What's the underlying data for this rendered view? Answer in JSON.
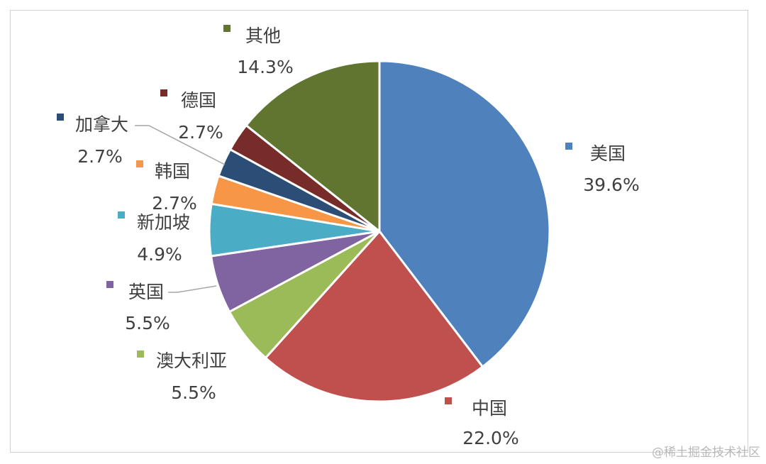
{
  "chart_data": {
    "type": "pie",
    "start_angle_deg": 0,
    "direction": "clockwise",
    "slices": [
      {
        "label": "美国",
        "value": 39.6,
        "display": "39.6%",
        "color": "#4f81bd"
      },
      {
        "label": "中国",
        "value": 22.0,
        "display": "22.0%",
        "color": "#c0504d"
      },
      {
        "label": "澳大利亚",
        "value": 5.5,
        "display": "5.5%",
        "color": "#9bbb59"
      },
      {
        "label": "英国",
        "value": 5.5,
        "display": "5.5%",
        "color": "#8064a2"
      },
      {
        "label": "新加坡",
        "value": 4.9,
        "display": "4.9%",
        "color": "#4bacc6"
      },
      {
        "label": "韩国",
        "value": 2.7,
        "display": "2.7%",
        "color": "#f79646"
      },
      {
        "label": "加拿大",
        "value": 2.7,
        "display": "2.7%",
        "color": "#2c4d75"
      },
      {
        "label": "德国",
        "value": 2.7,
        "display": "2.7%",
        "color": "#772c2a"
      },
      {
        "label": "其他",
        "value": 14.3,
        "display": "14.3%",
        "color": "#5f7530"
      }
    ]
  },
  "watermark": "@稀土掘金技术社区"
}
